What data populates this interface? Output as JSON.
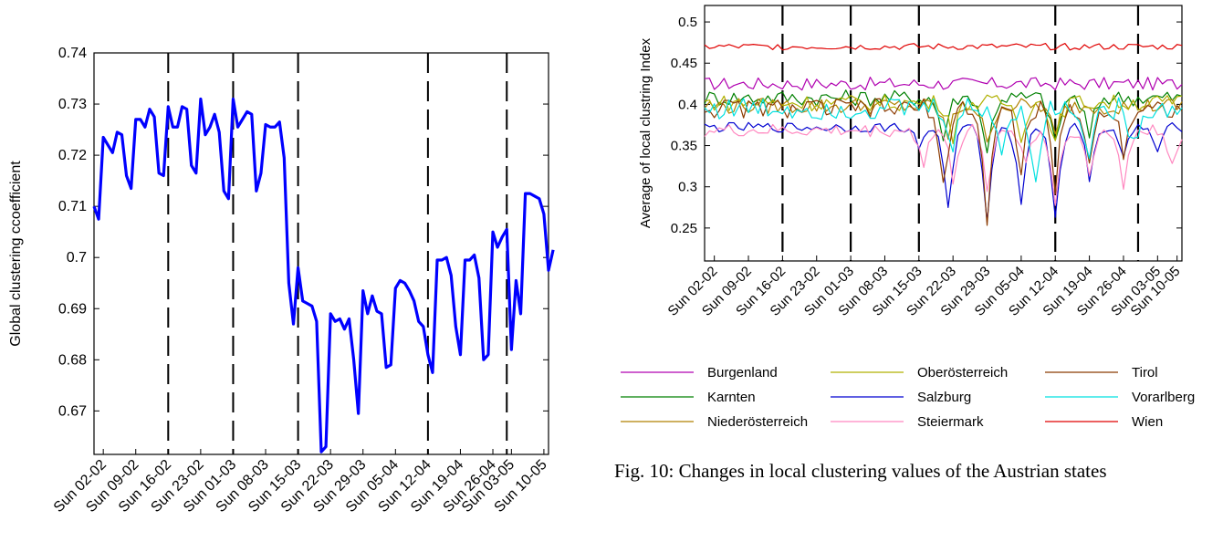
{
  "figure_caption": "Fig. 10: Changes in local clustering values of the Austrian states",
  "chart_data": [
    {
      "type": "line",
      "title": "",
      "xlabel": "",
      "ylabel": "Global clustering ccoefficient",
      "ylim": [
        0.6615,
        0.74
      ],
      "yticks": [
        0.67,
        0.68,
        0.69,
        0.7,
        0.71,
        0.72,
        0.73,
        0.74
      ],
      "ytick_labels": [
        "0.67",
        "0.68",
        "0.69",
        "0.7",
        "0.71",
        "0.72",
        "0.73",
        "0.74"
      ],
      "xlim": [
        0,
        98
      ],
      "xtick_positions": [
        2,
        9,
        16,
        23,
        30,
        37,
        44,
        51,
        58,
        65,
        72,
        79,
        86,
        90,
        97
      ],
      "xtick_labels": [
        "Sun 02-02",
        "Sun 09-02",
        "Sun 16-02",
        "Sun 23-02",
        "Sun 01-03",
        "Sun 08-03",
        "Sun 15-03",
        "Sun 22-03",
        "Sun 29-03",
        "Sun 05-04",
        "Sun 12-04",
        "Sun 19-04",
        "Sun 26-04",
        "Sun 03-05",
        "Sun 10-05"
      ],
      "vlines": [
        16,
        30,
        44,
        72,
        89
      ],
      "grid": false,
      "line_color": "#0000ff",
      "series": [
        {
          "values": [
            0.71,
            0.7075,
            0.7235,
            0.722,
            0.7205,
            0.7245,
            0.724,
            0.716,
            0.7135,
            0.727,
            0.727,
            0.7255,
            0.729,
            0.7275,
            0.7165,
            0.716,
            0.7295,
            0.7255,
            0.7255,
            0.7295,
            0.729,
            0.718,
            0.7165,
            0.731,
            0.724,
            0.7255,
            0.728,
            0.7245,
            0.713,
            0.7115,
            0.731,
            0.7255,
            0.727,
            0.7285,
            0.728,
            0.713,
            0.7165,
            0.726,
            0.7255,
            0.7255,
            0.7265,
            0.7195,
            0.695,
            0.687,
            0.698,
            0.6915,
            0.691,
            0.6905,
            0.6875,
            0.662,
            0.663,
            0.689,
            0.6875,
            0.688,
            0.686,
            0.688,
            0.68,
            0.6695,
            0.6935,
            0.689,
            0.6925,
            0.6895,
            0.689,
            0.6785,
            0.679,
            0.694,
            0.6955,
            0.695,
            0.6935,
            0.6915,
            0.6875,
            0.6865,
            0.681,
            0.6775,
            0.6995,
            0.6995,
            0.7,
            0.6965,
            0.6865,
            0.681,
            0.6995,
            0.6995,
            0.7005,
            0.696,
            0.68,
            0.681,
            0.705,
            0.702,
            0.704,
            0.7055,
            0.682,
            0.6955,
            0.689,
            0.7125,
            0.7125,
            0.712,
            0.7115,
            0.7085,
            0.6975,
            0.7015
          ]
        }
      ]
    },
    {
      "type": "line",
      "title": "",
      "xlabel": "",
      "ylabel": "Average of local clustring Index",
      "ylim": [
        0.21,
        0.52
      ],
      "yticks": [
        0.25,
        0.3,
        0.35,
        0.4,
        0.45,
        0.5
      ],
      "ytick_labels": [
        "0.25",
        "0.3",
        "0.35",
        "0.4",
        "0.45",
        "0.5"
      ],
      "xlim": [
        0,
        98
      ],
      "xtick_positions": [
        2,
        9,
        16,
        23,
        30,
        37,
        44,
        51,
        58,
        65,
        72,
        79,
        86,
        93,
        97
      ],
      "xtick_labels": [
        "Sun 02-02",
        "Sun 09-02",
        "Sun 16-02",
        "Sun 23-02",
        "Sun 01-03",
        "Sun 08-03",
        "Sun 15-03",
        "Sun 22-03",
        "Sun 29-03",
        "Sun 05-04",
        "Sun 12-04",
        "Sun 19-04",
        "Sun 26-04",
        "Sun 03-05",
        "Sun 10-05"
      ],
      "vlines": [
        16,
        30,
        44,
        72,
        89
      ],
      "grid": false,
      "legend_position": "bottom",
      "series": [
        {
          "name": "Burgenland",
          "color": "#b000b0",
          "base": 0.425,
          "noise": 0.008,
          "dips": []
        },
        {
          "name": "Karnten",
          "color": "#008000",
          "base": 0.408,
          "noise": 0.01,
          "dips": [
            [
              49,
              0.05
            ],
            [
              58,
              0.07
            ],
            [
              72,
              0.06
            ],
            [
              79,
              0.05
            ]
          ]
        },
        {
          "name": "Niederösterreich",
          "color": "#b08000",
          "base": 0.398,
          "noise": 0.01,
          "dips": [
            [
              50,
              0.04
            ],
            [
              58,
              0.05
            ],
            [
              72,
              0.04
            ]
          ]
        },
        {
          "name": "Oberösterreich",
          "color": "#b0b000",
          "base": 0.402,
          "noise": 0.01,
          "dips": [
            [
              51,
              0.04
            ],
            [
              65,
              0.04
            ],
            [
              72,
              0.05
            ]
          ]
        },
        {
          "name": "Salzburg",
          "color": "#0000d0",
          "base": 0.372,
          "noise": 0.006,
          "dips": [
            [
              44,
              0.025
            ],
            [
              50,
              0.1
            ],
            [
              58,
              0.11
            ],
            [
              65,
              0.09
            ],
            [
              72,
              0.11
            ],
            [
              79,
              0.06
            ],
            [
              86,
              0.04
            ],
            [
              93,
              0.03
            ]
          ]
        },
        {
          "name": "Steiermark",
          "color": "#ff88c0",
          "base": 0.368,
          "noise": 0.008,
          "dips": [
            [
              45,
              0.04
            ],
            [
              51,
              0.06
            ],
            [
              58,
              0.07
            ],
            [
              66,
              0.04
            ],
            [
              72,
              0.09
            ],
            [
              79,
              0.06
            ],
            [
              86,
              0.07
            ],
            [
              96,
              0.04
            ]
          ]
        },
        {
          "name": "Tirol",
          "color": "#8b3a00",
          "base": 0.395,
          "noise": 0.012,
          "dips": [
            [
              49,
              0.1
            ],
            [
              58,
              0.14
            ],
            [
              65,
              0.08
            ],
            [
              72,
              0.1
            ],
            [
              79,
              0.07
            ],
            [
              86,
              0.05
            ]
          ]
        },
        {
          "name": "Vorarlberg",
          "color": "#00e0e0",
          "base": 0.395,
          "noise": 0.014,
          "dips": [
            [
              51,
              0.05
            ],
            [
              61,
              0.06
            ],
            [
              68,
              0.1
            ],
            [
              79,
              0.06
            ],
            [
              88,
              0.05
            ]
          ]
        },
        {
          "name": "Wien",
          "color": "#e00000",
          "base": 0.47,
          "noise": 0.004,
          "dips": []
        }
      ]
    }
  ]
}
